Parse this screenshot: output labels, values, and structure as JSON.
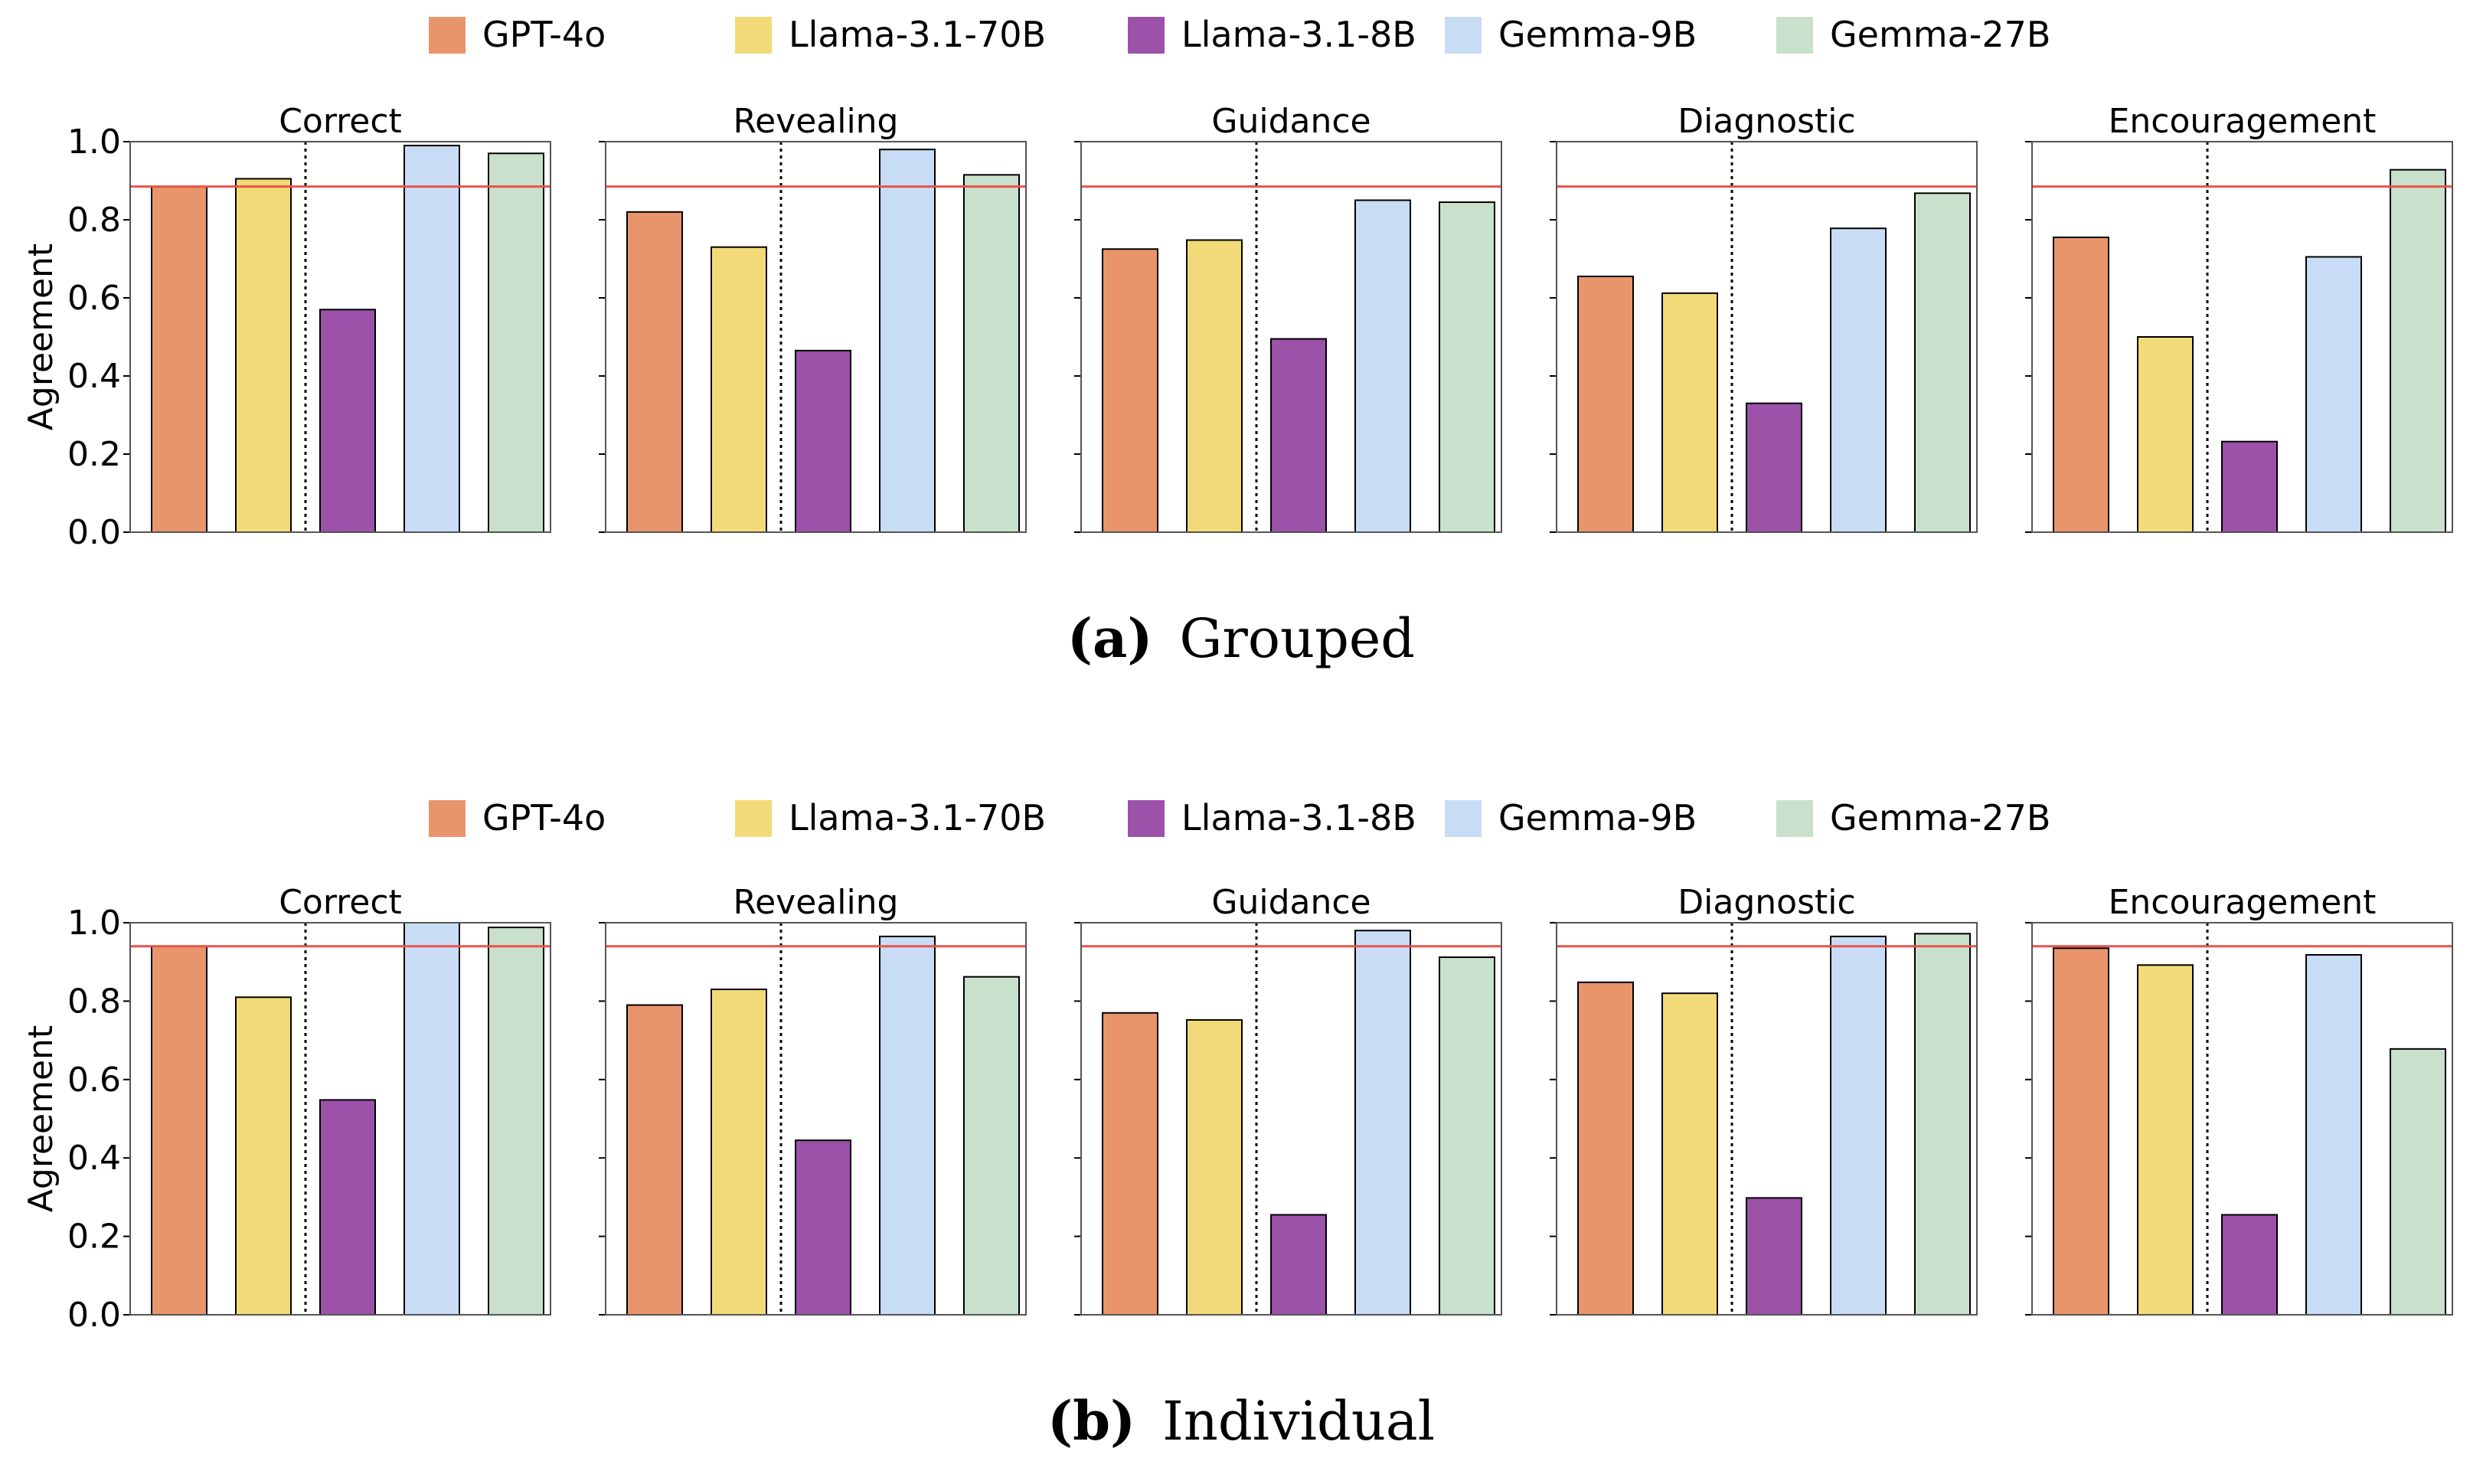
{
  "legend": [
    {
      "label": "GPT-4o",
      "color": "#e8956c"
    },
    {
      "label": "Llama-3.1-70B",
      "color": "#f2da78"
    },
    {
      "label": "Llama-3.1-8B",
      "color": "#9b52a8"
    },
    {
      "label": "Gemma-9B",
      "color": "#c8dcf5"
    },
    {
      "label": "Gemma-27B",
      "color": "#c8e0cc"
    }
  ],
  "reference_color": "#e8534a",
  "figures": [
    {
      "caption_letter": "(a)",
      "caption_text": "Grouped",
      "ylabel": "Agreement",
      "ylim": [
        0,
        1.0
      ],
      "yticks": [
        "0.0",
        "0.2",
        "0.4",
        "0.6",
        "0.8",
        "1.0"
      ],
      "reference_line": 0.885,
      "panels": [
        {
          "title": "Correct",
          "values": [
            0.885,
            0.905,
            0.57,
            0.99,
            0.97
          ]
        },
        {
          "title": "Revealing",
          "values": [
            0.82,
            0.73,
            0.465,
            0.98,
            0.915
          ]
        },
        {
          "title": "Guidance",
          "values": [
            0.725,
            0.748,
            0.495,
            0.85,
            0.845
          ]
        },
        {
          "title": "Diagnostic",
          "values": [
            0.655,
            0.612,
            0.33,
            0.778,
            0.868
          ]
        },
        {
          "title": "Encouragement",
          "values": [
            0.755,
            0.5,
            0.232,
            0.705,
            0.928
          ]
        }
      ]
    },
    {
      "caption_letter": "(b)",
      "caption_text": "Individual",
      "ylabel": "Agreement",
      "ylim": [
        0,
        1.0
      ],
      "yticks": [
        "0.0",
        "0.2",
        "0.4",
        "0.6",
        "0.8",
        "1.0"
      ],
      "reference_line": 0.94,
      "panels": [
        {
          "title": "Correct",
          "values": [
            0.94,
            0.81,
            0.548,
            1.0,
            0.988
          ]
        },
        {
          "title": "Revealing",
          "values": [
            0.79,
            0.83,
            0.445,
            0.965,
            0.862
          ]
        },
        {
          "title": "Guidance",
          "values": [
            0.77,
            0.752,
            0.255,
            0.98,
            0.912
          ]
        },
        {
          "title": "Diagnostic",
          "values": [
            0.848,
            0.82,
            0.298,
            0.965,
            0.972
          ]
        },
        {
          "title": "Encouragement",
          "values": [
            0.935,
            0.892,
            0.255,
            0.918,
            0.678
          ]
        }
      ]
    }
  ],
  "chart_data": [
    {
      "type": "bar",
      "title": "(a) Grouped",
      "ylabel": "Agreement",
      "ylim": [
        0,
        1.0
      ],
      "categories": [
        "Correct",
        "Revealing",
        "Guidance",
        "Diagnostic",
        "Encouragement"
      ],
      "series": [
        {
          "name": "GPT-4o",
          "values": [
            0.885,
            0.82,
            0.725,
            0.655,
            0.755
          ]
        },
        {
          "name": "Llama-3.1-70B",
          "values": [
            0.905,
            0.73,
            0.748,
            0.612,
            0.5
          ]
        },
        {
          "name": "Llama-3.1-8B",
          "values": [
            0.57,
            0.465,
            0.495,
            0.33,
            0.232
          ]
        },
        {
          "name": "Gemma-9B",
          "values": [
            0.99,
            0.98,
            0.85,
            0.778,
            0.705
          ]
        },
        {
          "name": "Gemma-27B",
          "values": [
            0.97,
            0.915,
            0.845,
            0.868,
            0.928
          ]
        }
      ],
      "reference_line": 0.885
    },
    {
      "type": "bar",
      "title": "(b) Individual",
      "ylabel": "Agreement",
      "ylim": [
        0,
        1.0
      ],
      "categories": [
        "Correct",
        "Revealing",
        "Guidance",
        "Diagnostic",
        "Encouragement"
      ],
      "series": [
        {
          "name": "GPT-4o",
          "values": [
            0.94,
            0.79,
            0.77,
            0.848,
            0.935
          ]
        },
        {
          "name": "Llama-3.1-70B",
          "values": [
            0.81,
            0.83,
            0.752,
            0.82,
            0.892
          ]
        },
        {
          "name": "Llama-3.1-8B",
          "values": [
            0.548,
            0.445,
            0.255,
            0.298,
            0.255
          ]
        },
        {
          "name": "Gemma-9B",
          "values": [
            1.0,
            0.965,
            0.98,
            0.965,
            0.918
          ]
        },
        {
          "name": "Gemma-27B",
          "values": [
            0.988,
            0.862,
            0.912,
            0.972,
            0.678
          ]
        }
      ],
      "reference_line": 0.94
    }
  ]
}
